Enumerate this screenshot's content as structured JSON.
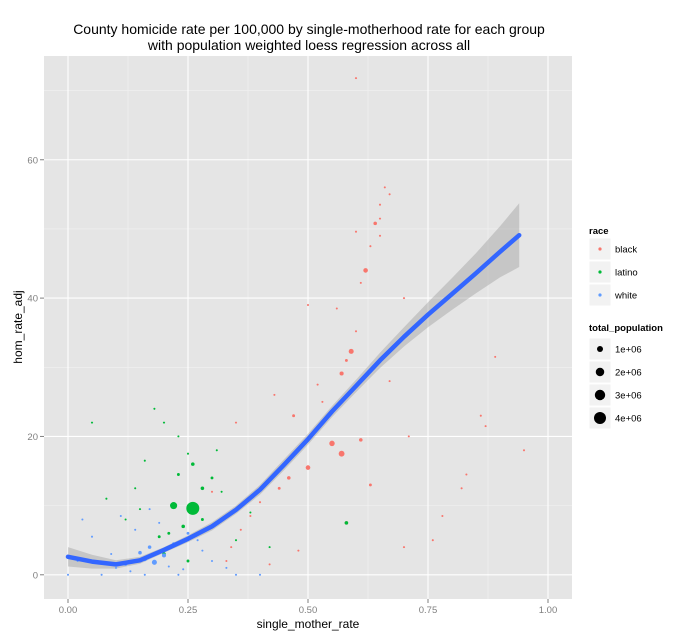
{
  "chart_data": {
    "type": "scatter",
    "title_lines": [
      "County homicide rate per 100,000 by single-motherhood rate for each group",
      "with population weighted loess regression across all"
    ],
    "xlabel": "single_mother_rate",
    "ylabel": "hom_rate_adj",
    "xlim": [
      -0.05,
      1.05
    ],
    "ylim": [
      -3.5,
      75
    ],
    "x_ticks": [
      0.0,
      0.25,
      0.5,
      0.75,
      1.0
    ],
    "x_tick_labels": [
      "0.00",
      "0.25",
      "0.50",
      "0.75",
      "1.00"
    ],
    "y_ticks": [
      0,
      20,
      40,
      60
    ],
    "y_tick_labels": [
      "0",
      "20",
      "40",
      "60"
    ],
    "grid": true,
    "legend_placement": "right",
    "legend_color": {
      "title": "race",
      "entries": [
        {
          "name": "black",
          "color": "#F8766D"
        },
        {
          "name": "latino",
          "color": "#00BA38"
        },
        {
          "name": "white",
          "color": "#619CFF"
        }
      ]
    },
    "legend_size": {
      "title": "total_population",
      "entries": [
        {
          "label": "1e+06",
          "value": 1000000
        },
        {
          "label": "2e+06",
          "value": 2000000
        },
        {
          "label": "3e+06",
          "value": 3000000
        },
        {
          "label": "4e+06",
          "value": 4000000
        }
      ]
    },
    "series": [
      {
        "name": "black",
        "color": "#F8766D",
        "points": [
          [
            0.6,
            71.8,
            0.1
          ],
          [
            0.66,
            56.0,
            0.1
          ],
          [
            0.67,
            55.0,
            0.1
          ],
          [
            0.65,
            53.5,
            0.1
          ],
          [
            0.65,
            51.5,
            0.1
          ],
          [
            0.64,
            50.8,
            0.3
          ],
          [
            0.6,
            49.6,
            0.1
          ],
          [
            0.65,
            49.0,
            0.1
          ],
          [
            0.63,
            47.5,
            0.1
          ],
          [
            0.62,
            44.0,
            0.5
          ],
          [
            0.61,
            42.2,
            0.1
          ],
          [
            0.56,
            38.5,
            0.1
          ],
          [
            0.6,
            35.2,
            0.1
          ],
          [
            0.59,
            32.3,
            0.6
          ],
          [
            0.58,
            31.0,
            0.2
          ],
          [
            0.57,
            29.1,
            0.4
          ],
          [
            0.67,
            28.0,
            0.1
          ],
          [
            0.52,
            27.5,
            0.1
          ],
          [
            0.43,
            26.0,
            0.1
          ],
          [
            0.89,
            31.5,
            0.1
          ],
          [
            0.86,
            23.0,
            0.1
          ],
          [
            0.87,
            21.5,
            0.1
          ],
          [
            0.95,
            18.0,
            0.1
          ],
          [
            0.83,
            14.5,
            0.1
          ],
          [
            0.82,
            12.5,
            0.1
          ],
          [
            0.71,
            20.0,
            0.1
          ],
          [
            0.47,
            23.0,
            0.2
          ],
          [
            0.53,
            25.0,
            0.1
          ],
          [
            0.55,
            19.0,
            0.7
          ],
          [
            0.57,
            17.5,
            0.8
          ],
          [
            0.5,
            15.5,
            0.5
          ],
          [
            0.46,
            14.0,
            0.3
          ],
          [
            0.61,
            19.5,
            0.3
          ],
          [
            0.63,
            13.0,
            0.2
          ],
          [
            0.44,
            12.5,
            0.2
          ],
          [
            0.4,
            10.5,
            0.1
          ],
          [
            0.38,
            8.5,
            0.1
          ],
          [
            0.36,
            6.5,
            0.1
          ],
          [
            0.34,
            4.0,
            0.1
          ],
          [
            0.33,
            2.0,
            0.1
          ],
          [
            0.42,
            1.5,
            0.1
          ],
          [
            0.48,
            3.5,
            0.1
          ],
          [
            0.7,
            4.0,
            0.1
          ],
          [
            0.76,
            5.0,
            0.1
          ],
          [
            0.78,
            8.5,
            0.1
          ],
          [
            0.58,
            7.5,
            0.3
          ],
          [
            0.3,
            12.0,
            0.1
          ],
          [
            0.35,
            22.0,
            0.1
          ],
          [
            0.5,
            39.0,
            0.1
          ],
          [
            0.7,
            40.0,
            0.1
          ]
        ]
      },
      {
        "name": "latino",
        "color": "#00BA38",
        "points": [
          [
            0.26,
            9.6,
            4.0
          ],
          [
            0.22,
            10.0,
            1.2
          ],
          [
            0.26,
            16.0,
            0.3
          ],
          [
            0.18,
            24.0,
            0.1
          ],
          [
            0.2,
            22.0,
            0.1
          ],
          [
            0.23,
            20.0,
            0.1
          ],
          [
            0.25,
            17.5,
            0.1
          ],
          [
            0.16,
            16.5,
            0.1
          ],
          [
            0.3,
            14.0,
            0.2
          ],
          [
            0.32,
            12.0,
            0.1
          ],
          [
            0.28,
            8.0,
            0.2
          ],
          [
            0.24,
            7.0,
            0.3
          ],
          [
            0.21,
            6.0,
            0.2
          ],
          [
            0.19,
            5.5,
            0.2
          ],
          [
            0.35,
            5.0,
            0.1
          ],
          [
            0.38,
            9.0,
            0.1
          ],
          [
            0.58,
            7.5,
            0.3
          ],
          [
            0.14,
            12.5,
            0.1
          ],
          [
            0.15,
            9.5,
            0.1
          ],
          [
            0.12,
            8.0,
            0.1
          ],
          [
            0.08,
            11.0,
            0.1
          ],
          [
            0.05,
            22.0,
            0.1
          ],
          [
            0.31,
            18.0,
            0.1
          ],
          [
            0.42,
            4.0,
            0.1
          ],
          [
            0.2,
            3.0,
            0.3
          ],
          [
            0.25,
            2.0,
            0.2
          ],
          [
            0.28,
            12.5,
            0.3
          ],
          [
            0.23,
            14.5,
            0.2
          ]
        ]
      },
      {
        "name": "white",
        "color": "#619CFF",
        "points": [
          [
            0.18,
            1.8,
            0.6
          ],
          [
            0.16,
            2.3,
            0.5
          ],
          [
            0.2,
            2.8,
            0.4
          ],
          [
            0.15,
            3.2,
            0.3
          ],
          [
            0.17,
            4.0,
            0.3
          ],
          [
            0.22,
            4.5,
            0.2
          ],
          [
            0.12,
            1.5,
            0.2
          ],
          [
            0.1,
            1.0,
            0.1
          ],
          [
            0.07,
            0.0,
            0.1
          ],
          [
            0.0,
            0.0,
            0.1
          ],
          [
            0.05,
            5.5,
            0.1
          ],
          [
            0.25,
            6.0,
            0.2
          ],
          [
            0.28,
            3.5,
            0.1
          ],
          [
            0.3,
            2.0,
            0.1
          ],
          [
            0.14,
            6.5,
            0.1
          ],
          [
            0.19,
            7.5,
            0.1
          ],
          [
            0.11,
            8.5,
            0.1
          ],
          [
            0.02,
            2.0,
            0.1
          ],
          [
            0.13,
            0.5,
            0.1
          ],
          [
            0.24,
            0.8,
            0.1
          ],
          [
            0.21,
            1.2,
            0.1
          ],
          [
            0.09,
            3.0,
            0.1
          ],
          [
            0.27,
            5.0,
            0.1
          ],
          [
            0.33,
            1.0,
            0.1
          ],
          [
            0.17,
            9.5,
            0.1
          ],
          [
            0.03,
            8.0,
            0.1
          ],
          [
            0.16,
            0.0,
            0.1
          ],
          [
            0.23,
            0.0,
            0.1
          ],
          [
            0.35,
            0.0,
            0.1
          ],
          [
            0.4,
            0.0,
            0.1
          ]
        ]
      }
    ],
    "loess": {
      "name": "loess",
      "color": "#3366FF",
      "band_color": "#999999",
      "x": [
        0.0,
        0.05,
        0.1,
        0.15,
        0.2,
        0.25,
        0.3,
        0.35,
        0.4,
        0.45,
        0.5,
        0.55,
        0.6,
        0.65,
        0.7,
        0.75,
        0.8,
        0.85,
        0.9,
        0.94
      ],
      "y": [
        2.6,
        1.9,
        1.5,
        2.1,
        3.6,
        5.2,
        7.0,
        9.4,
        12.3,
        15.9,
        19.6,
        23.6,
        27.3,
        31.0,
        34.4,
        37.6,
        40.6,
        43.6,
        46.7,
        49.1
      ],
      "lower": [
        1.2,
        0.9,
        0.9,
        1.6,
        3.2,
        4.7,
        6.4,
        8.8,
        11.6,
        15.1,
        18.8,
        22.8,
        26.4,
        29.9,
        33.0,
        35.8,
        38.3,
        40.7,
        43.0,
        44.5
      ],
      "upper": [
        4.0,
        2.9,
        2.1,
        2.6,
        4.0,
        5.7,
        7.6,
        10.0,
        13.0,
        16.7,
        20.4,
        24.4,
        28.2,
        32.1,
        35.8,
        39.4,
        42.9,
        46.5,
        50.4,
        53.7
      ]
    }
  }
}
